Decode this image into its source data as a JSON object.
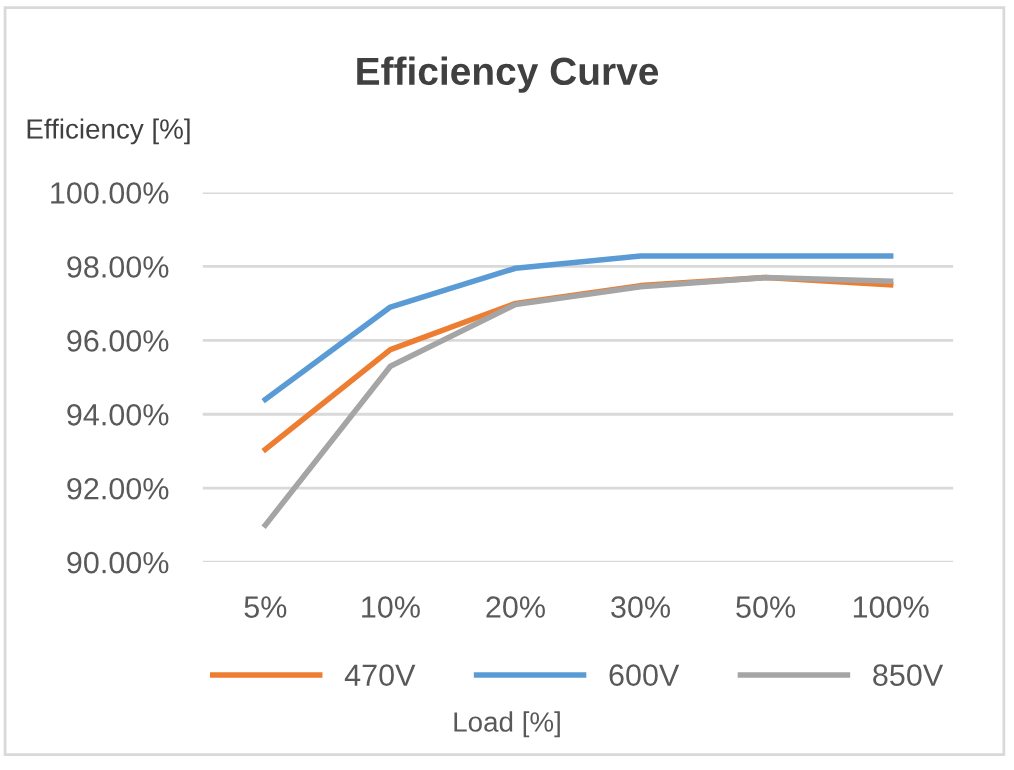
{
  "chart_data": {
    "type": "line",
    "title": "Efficiency Curve",
    "ylabel": "Efficiency [%]",
    "xlabel": "Load [%]",
    "categories": [
      "5%",
      "10%",
      "20%",
      "30%",
      "50%",
      "100%"
    ],
    "series": [
      {
        "name": "470V",
        "color": "#ed7d31",
        "values": [
          93.05,
          95.75,
          97.0,
          97.48,
          97.7,
          97.5
        ]
      },
      {
        "name": "600V",
        "color": "#5b9bd5",
        "values": [
          94.4,
          96.9,
          97.95,
          98.28,
          98.28,
          98.28
        ]
      },
      {
        "name": "850V",
        "color": "#a5a5a5",
        "values": [
          91.0,
          95.3,
          96.97,
          97.45,
          97.7,
          97.6
        ]
      }
    ],
    "ylim": [
      90,
      100
    ],
    "yticks": [
      {
        "value": 90,
        "label": "90.00%"
      },
      {
        "value": 92,
        "label": "92.00%"
      },
      {
        "value": 94,
        "label": "94.00%"
      },
      {
        "value": 96,
        "label": "96.00%"
      },
      {
        "value": 98,
        "label": "98.00%"
      },
      {
        "value": 100,
        "label": "100.00%"
      }
    ],
    "grid": "y",
    "legend": "bottom",
    "marker": "none",
    "line_style": "solid"
  }
}
